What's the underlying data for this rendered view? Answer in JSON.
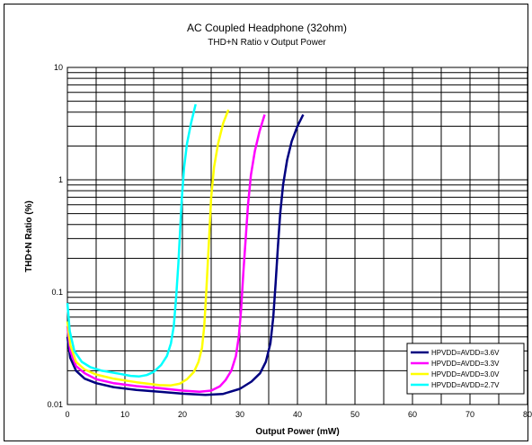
{
  "chart_data": {
    "type": "line",
    "title": "AC Coupled Headphone (32ohm)",
    "subtitle": "THD+N Ratio v Output Power",
    "xlabel": "Output Power (mW)",
    "ylabel": "THD+N Ratio (%)",
    "xlim": [
      0,
      80
    ],
    "ylim": [
      0.01,
      10
    ],
    "yscale": "log",
    "grid": true,
    "legend_position": "bottom-right",
    "x_ticks": [
      "0",
      "10",
      "20",
      "30",
      "40",
      "50",
      "60",
      "70",
      "80"
    ],
    "y_ticks": [
      "0.01",
      "0.1",
      "1",
      "10"
    ],
    "series": [
      {
        "name": "HPVDD=AVDD=3.6V",
        "color": "#000080",
        "points": [
          [
            0,
            0.04
          ],
          [
            0.5,
            0.026
          ],
          [
            1.5,
            0.02
          ],
          [
            3,
            0.017
          ],
          [
            5,
            0.0155
          ],
          [
            8,
            0.0143
          ],
          [
            12,
            0.0135
          ],
          [
            16,
            0.013
          ],
          [
            20,
            0.0125
          ],
          [
            24,
            0.0122
          ],
          [
            27,
            0.0124
          ],
          [
            30,
            0.0138
          ],
          [
            32,
            0.016
          ],
          [
            33.5,
            0.019
          ],
          [
            34.5,
            0.024
          ],
          [
            35.3,
            0.035
          ],
          [
            35.8,
            0.06
          ],
          [
            36.2,
            0.12
          ],
          [
            36.6,
            0.25
          ],
          [
            37,
            0.5
          ],
          [
            37.5,
            0.9
          ],
          [
            38.2,
            1.5
          ],
          [
            39,
            2.2
          ],
          [
            40,
            3
          ],
          [
            41,
            3.8
          ]
        ]
      },
      {
        "name": "HPVDD=AVDD=3.3V",
        "color": "#FF00FF",
        "points": [
          [
            0,
            0.05
          ],
          [
            0.5,
            0.03
          ],
          [
            1.5,
            0.022
          ],
          [
            3,
            0.019
          ],
          [
            5,
            0.0168
          ],
          [
            8,
            0.0155
          ],
          [
            12,
            0.0146
          ],
          [
            16,
            0.014
          ],
          [
            20,
            0.0133
          ],
          [
            23,
            0.013
          ],
          [
            25,
            0.0133
          ],
          [
            26.5,
            0.0145
          ],
          [
            27.5,
            0.0165
          ],
          [
            28.5,
            0.02
          ],
          [
            29.3,
            0.027
          ],
          [
            29.8,
            0.04
          ],
          [
            30.2,
            0.07
          ],
          [
            30.6,
            0.15
          ],
          [
            31,
            0.3
          ],
          [
            31.4,
            0.6
          ],
          [
            31.9,
            1.1
          ],
          [
            32.6,
            1.8
          ],
          [
            33.4,
            2.7
          ],
          [
            34.3,
            3.8
          ]
        ]
      },
      {
        "name": "HPVDD=AVDD=3.0V",
        "color": "#FFFF00",
        "points": [
          [
            0,
            0.055
          ],
          [
            0.5,
            0.034
          ],
          [
            1.5,
            0.024
          ],
          [
            3,
            0.0205
          ],
          [
            5,
            0.0185
          ],
          [
            8,
            0.017
          ],
          [
            12,
            0.0158
          ],
          [
            16,
            0.0149
          ],
          [
            18,
            0.0148
          ],
          [
            19.5,
            0.0153
          ],
          [
            20.8,
            0.0168
          ],
          [
            22,
            0.0195
          ],
          [
            22.8,
            0.024
          ],
          [
            23.4,
            0.032
          ],
          [
            23.8,
            0.05
          ],
          [
            24.1,
            0.09
          ],
          [
            24.4,
            0.18
          ],
          [
            24.7,
            0.35
          ],
          [
            25,
            0.7
          ],
          [
            25.5,
            1.3
          ],
          [
            26.2,
            2.1
          ],
          [
            27.1,
            3.2
          ],
          [
            28,
            4.2
          ]
        ]
      },
      {
        "name": "HPVDD=AVDD=2.7V",
        "color": "#00FFFF",
        "points": [
          [
            0,
            0.08
          ],
          [
            0.4,
            0.045
          ],
          [
            1.2,
            0.03
          ],
          [
            2.5,
            0.024
          ],
          [
            4,
            0.0215
          ],
          [
            6,
            0.02
          ],
          [
            9,
            0.0188
          ],
          [
            11,
            0.018
          ],
          [
            12.5,
            0.0178
          ],
          [
            13.8,
            0.0183
          ],
          [
            15,
            0.0195
          ],
          [
            16.3,
            0.0225
          ],
          [
            17.3,
            0.027
          ],
          [
            18,
            0.035
          ],
          [
            18.5,
            0.05
          ],
          [
            18.9,
            0.09
          ],
          [
            19.3,
            0.18
          ],
          [
            19.6,
            0.35
          ],
          [
            19.9,
            0.7
          ],
          [
            20.3,
            1.3
          ],
          [
            20.8,
            2.1
          ],
          [
            21.5,
            3.2
          ],
          [
            22.3,
            4.7
          ]
        ]
      }
    ]
  }
}
